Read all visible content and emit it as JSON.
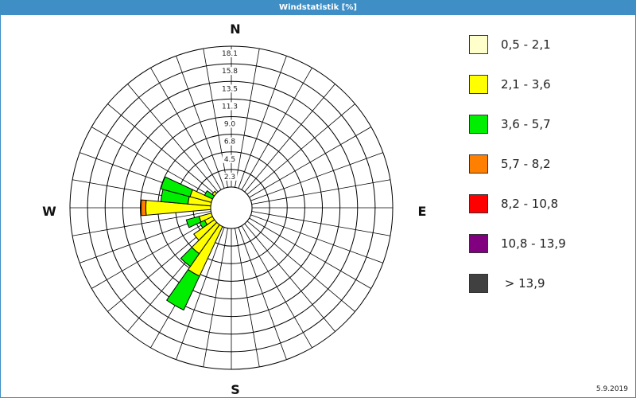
{
  "window": {
    "title": "Windstatistik [%]",
    "date": "5.9.2019"
  },
  "colors": {
    "title_bar": "#3f8fc6",
    "bins": [
      "#ffffcc",
      "#ffff00",
      "#00ee00",
      "#ff7f00",
      "#ff0000",
      "#800080",
      "#404040"
    ]
  },
  "chart_data": {
    "type": "wind-rose",
    "title": "Windstatistik [%]",
    "unit": "%",
    "directions": [
      "N",
      "E",
      "S",
      "W"
    ],
    "radial_ticks": [
      "2.3",
      "4.5",
      "6.8",
      "9.0",
      "11.3",
      "13.5",
      "15.8",
      "18.1"
    ],
    "rmax": 18.1,
    "speed_bins": [
      "0,5 - 2,1",
      "2,1 - 3,6",
      "3,6 - 5,7",
      "5,7 - 8,2",
      "8,2 - 10,8",
      "10,8 - 13,9",
      " > 13,9"
    ],
    "sectors": [
      {
        "direction_deg": 210,
        "values": [
          0.6,
          9.1,
          4.8,
          0,
          0,
          0,
          0
        ]
      },
      {
        "direction_deg": 220,
        "values": [
          0.6,
          6.6,
          2.0,
          0,
          0,
          0,
          0
        ]
      },
      {
        "direction_deg": 230,
        "values": [
          0.6,
          5.3,
          0,
          0,
          0,
          0,
          0
        ]
      },
      {
        "direction_deg": 240,
        "values": [
          0.6,
          3.2,
          0.7,
          0,
          0,
          0,
          0
        ]
      },
      {
        "direction_deg": 250,
        "values": [
          0.6,
          3.7,
          1.7,
          0,
          0,
          0,
          0
        ]
      },
      {
        "direction_deg": 270,
        "values": [
          0.6,
          10.4,
          0,
          0.6,
          0,
          0,
          0
        ]
      },
      {
        "direction_deg": 280,
        "values": [
          0.6,
          5.0,
          3.5,
          0,
          0,
          0,
          0
        ]
      },
      {
        "direction_deg": 290,
        "values": [
          0.6,
          4.9,
          3.9,
          0,
          0,
          0,
          0
        ]
      },
      {
        "direction_deg": 300,
        "values": [
          0.6,
          1.3,
          1.9,
          0,
          0,
          0,
          0
        ]
      },
      {
        "direction_deg": 310,
        "values": [
          0.6,
          2.4,
          0,
          0,
          0,
          0,
          0
        ]
      },
      {
        "direction_deg": 320,
        "values": [
          0.6,
          1.0,
          0,
          0,
          0,
          0,
          0
        ]
      }
    ],
    "grid": true,
    "sector_spacing_deg": 10,
    "legend_position": "right"
  }
}
